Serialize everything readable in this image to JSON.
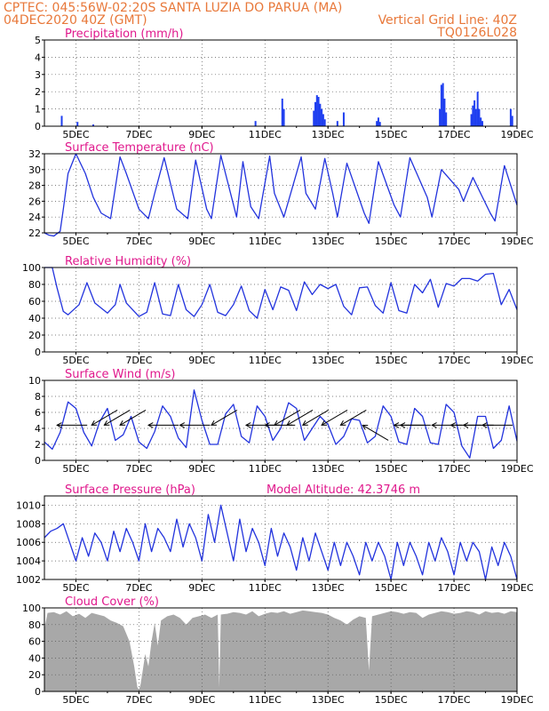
{
  "header": {
    "line1_left": "CPTEC:  045:56W-02:20S  SANTA LUZIA DO PARUA (MA)",
    "line2_left": "04DEC2020 40Z (GMT)",
    "line2_right": "Vertical Grid Line: 40Z",
    "line3_right": "TQ0126L028"
  },
  "colors": {
    "header": "#e8783a",
    "title": "#e0188c",
    "line": "#2233dd",
    "bar": "#1f3ff0",
    "cloud": "#a8a8a8",
    "arrow": "#000000"
  },
  "x_ticks": [
    "5DEC",
    "7DEC",
    "9DEC",
    "11DEC",
    "13DEC",
    "15DEC",
    "17DEC",
    "19DEC"
  ],
  "chart_data": [
    {
      "id": "precip",
      "type": "bar",
      "title": "Precipitation (mm/h)",
      "x_start": 4.0,
      "x_end": 19.0,
      "ylim": [
        0,
        5
      ],
      "yticks": [
        "0",
        "1",
        "2",
        "3",
        "4",
        "5"
      ],
      "grid": true,
      "x": [
        4.55,
        5.05,
        5.55,
        10.7,
        11.55,
        11.6,
        12.55,
        12.6,
        12.65,
        12.7,
        12.75,
        12.8,
        12.85,
        12.9,
        13.3,
        13.5,
        14.55,
        14.6,
        14.65,
        16.55,
        16.6,
        16.65,
        16.7,
        16.75,
        17.55,
        17.6,
        17.65,
        17.7,
        17.75,
        17.8,
        17.85,
        17.9,
        18.8,
        18.85
      ],
      "values": [
        0.6,
        0.25,
        0.1,
        0.3,
        1.6,
        1.0,
        0.9,
        1.4,
        1.8,
        1.7,
        1.3,
        1.0,
        0.7,
        0.4,
        0.3,
        0.8,
        0.3,
        0.5,
        0.25,
        1.0,
        2.4,
        2.5,
        1.6,
        0.8,
        0.7,
        1.2,
        1.5,
        1.0,
        2.0,
        1.0,
        0.5,
        0.3,
        1.0,
        0.6
      ]
    },
    {
      "id": "temp",
      "type": "line",
      "title": "Surface Temperature (nC)",
      "ylim": [
        22,
        32
      ],
      "yticks": [
        "22",
        "24",
        "26",
        "28",
        "30",
        "32"
      ],
      "grid": true,
      "x": [
        4.0,
        4.15,
        4.3,
        4.5,
        4.6,
        4.75,
        5.0,
        5.3,
        5.55,
        5.8,
        6.1,
        6.4,
        6.6,
        7.0,
        7.3,
        7.5,
        7.8,
        8.2,
        8.55,
        8.8,
        9.15,
        9.3,
        9.6,
        10.1,
        10.3,
        10.55,
        10.8,
        11.15,
        11.3,
        11.6,
        12.15,
        12.3,
        12.6,
        12.9,
        13.15,
        13.3,
        13.6,
        14.15,
        14.3,
        14.6,
        15.1,
        15.3,
        15.6,
        16.15,
        16.3,
        16.6,
        17.15,
        17.3,
        17.6,
        18.15,
        18.3,
        18.6,
        19.0
      ],
      "values": [
        22.0,
        21.7,
        21.6,
        22.2,
        25.0,
        29.5,
        32.0,
        29.5,
        26.5,
        24.5,
        23.8,
        31.6,
        29.5,
        25.0,
        23.8,
        27.0,
        31.5,
        25.0,
        23.8,
        31.2,
        25.0,
        23.8,
        31.8,
        24.0,
        31.0,
        25.3,
        23.8,
        31.7,
        27.0,
        24.0,
        31.6,
        27.0,
        25.0,
        31.4,
        27.0,
        24.0,
        30.8,
        24.5,
        23.2,
        31.0,
        25.5,
        24.0,
        31.5,
        26.5,
        24.0,
        30.0,
        27.5,
        26.0,
        29.0,
        24.5,
        23.5,
        30.5,
        25.5
      ]
    },
    {
      "id": "rh",
      "type": "line",
      "title": "Relative Humidity (%)",
      "ylim": [
        0,
        100
      ],
      "yticks": [
        "0",
        "20",
        "40",
        "60",
        "80",
        "100"
      ],
      "grid": true,
      "x": [
        4.0,
        4.25,
        4.4,
        4.6,
        4.75,
        5.1,
        5.35,
        5.6,
        6.0,
        6.25,
        6.4,
        6.6,
        7.0,
        7.25,
        7.5,
        7.75,
        8.0,
        8.25,
        8.5,
        8.75,
        9.0,
        9.25,
        9.5,
        9.75,
        10.0,
        10.25,
        10.5,
        10.75,
        11.0,
        11.25,
        11.5,
        11.75,
        12.0,
        12.25,
        12.5,
        12.75,
        13.0,
        13.25,
        13.5,
        13.75,
        14.0,
        14.25,
        14.5,
        14.75,
        15.0,
        15.25,
        15.5,
        15.75,
        16.0,
        16.25,
        16.5,
        16.75,
        17.0,
        17.25,
        17.5,
        17.75,
        18.0,
        18.25,
        18.5,
        18.75,
        19.0
      ],
      "values": [
        100,
        100,
        76,
        48,
        44,
        56,
        82,
        58,
        46,
        56,
        80,
        58,
        42,
        47,
        82,
        45,
        43,
        80,
        50,
        42,
        56,
        80,
        47,
        43,
        56,
        78,
        49,
        40,
        74,
        50,
        77,
        73,
        49,
        83,
        68,
        80,
        75,
        80,
        54,
        44,
        76,
        77,
        55,
        46,
        82,
        49,
        46,
        80,
        70,
        86,
        53,
        81,
        78,
        87,
        87,
        84,
        92,
        93,
        56,
        74,
        50
      ]
    },
    {
      "id": "wind",
      "type": "line",
      "title": "Surface Wind (m/s)",
      "ylim": [
        0,
        10
      ],
      "yticks": [
        "0",
        "2",
        "4",
        "6",
        "8",
        "10"
      ],
      "grid": true,
      "x": [
        4.0,
        4.25,
        4.5,
        4.75,
        5.0,
        5.25,
        5.5,
        5.75,
        6.0,
        6.25,
        6.5,
        6.75,
        7.0,
        7.25,
        7.5,
        7.75,
        8.0,
        8.25,
        8.5,
        8.75,
        9.0,
        9.25,
        9.5,
        9.75,
        10.0,
        10.25,
        10.5,
        10.75,
        11.0,
        11.25,
        11.5,
        11.75,
        12.0,
        12.25,
        12.5,
        12.75,
        13.0,
        13.25,
        13.5,
        13.75,
        14.0,
        14.25,
        14.5,
        14.75,
        15.0,
        15.25,
        15.5,
        15.75,
        16.0,
        16.25,
        16.5,
        16.75,
        17.0,
        17.25,
        17.5,
        17.75,
        18.0,
        18.25,
        18.5,
        18.75,
        19.0
      ],
      "values": [
        2.3,
        1.4,
        3.5,
        7.3,
        6.5,
        3.5,
        1.8,
        4.8,
        6.5,
        2.5,
        3.2,
        5.5,
        2.3,
        1.5,
        3.6,
        6.8,
        5.5,
        2.8,
        1.6,
        8.8,
        5.0,
        2.0,
        2.0,
        5.8,
        7.0,
        3.0,
        2.2,
        6.8,
        5.5,
        2.5,
        4.0,
        7.2,
        6.5,
        2.5,
        4.0,
        5.5,
        4.5,
        2.0,
        3.0,
        5.2,
        5.0,
        2.2,
        3.0,
        6.8,
        5.5,
        2.3,
        2.0,
        6.5,
        5.5,
        2.2,
        2.0,
        7.0,
        6.0,
        1.8,
        0.3,
        5.5,
        5.5,
        1.5,
        2.5,
        6.8,
        2.4
      ],
      "arrows_x": [
        4.4,
        5.5,
        5.9,
        6.4,
        7.3,
        8.3,
        9.3,
        10.4,
        11.0,
        11.3,
        11.7,
        12.2,
        12.8,
        13.4,
        14.1,
        15.1,
        15.3,
        16.3,
        16.9,
        17.3,
        17.9
      ],
      "arrows_dir": [
        "W",
        "SW",
        "SW",
        "SW",
        "W",
        "W",
        "SW",
        "W",
        "W",
        "SW",
        "SW",
        "SW",
        "SW",
        "SW",
        "NW",
        "W",
        "W",
        "W",
        "W",
        "W",
        "W"
      ]
    },
    {
      "id": "pressure",
      "type": "line",
      "title": "Surface Pressure (hPa)",
      "annotation": "Model Altitude: 42.3746 m",
      "ylim": [
        1002,
        1011
      ],
      "yticks": [
        "1002",
        "1004",
        "1006",
        "1008",
        "1010"
      ],
      "grid": true,
      "x": [
        4.0,
        4.2,
        4.4,
        4.6,
        4.8,
        5.0,
        5.2,
        5.4,
        5.6,
        5.8,
        6.0,
        6.2,
        6.4,
        6.6,
        6.8,
        7.0,
        7.2,
        7.4,
        7.6,
        7.8,
        8.0,
        8.2,
        8.4,
        8.6,
        8.8,
        9.0,
        9.2,
        9.4,
        9.6,
        9.8,
        10.0,
        10.2,
        10.4,
        10.6,
        10.8,
        11.0,
        11.2,
        11.4,
        11.6,
        11.8,
        12.0,
        12.2,
        12.4,
        12.6,
        12.8,
        13.0,
        13.2,
        13.4,
        13.6,
        13.8,
        14.0,
        14.2,
        14.4,
        14.6,
        14.8,
        15.0,
        15.2,
        15.4,
        15.6,
        15.8,
        16.0,
        16.2,
        16.4,
        16.6,
        16.8,
        17.0,
        17.2,
        17.4,
        17.6,
        17.8,
        18.0,
        18.2,
        18.4,
        18.6,
        18.8,
        19.0
      ],
      "values": [
        1006.5,
        1007.2,
        1007.5,
        1008.0,
        1006.0,
        1004.0,
        1006.5,
        1004.5,
        1007.0,
        1006.0,
        1004.0,
        1007.2,
        1005.0,
        1007.5,
        1006.0,
        1004.0,
        1008.0,
        1005.0,
        1007.5,
        1006.5,
        1005.0,
        1008.5,
        1005.5,
        1008.0,
        1006.5,
        1004.0,
        1009.0,
        1006.0,
        1010.0,
        1007.0,
        1004.0,
        1008.5,
        1005.0,
        1007.5,
        1006.0,
        1003.5,
        1007.5,
        1004.5,
        1007.0,
        1005.5,
        1003.0,
        1006.5,
        1004.0,
        1007.0,
        1005.0,
        1003.0,
        1006.0,
        1003.5,
        1006.0,
        1004.5,
        1002.5,
        1006.0,
        1004.0,
        1006.0,
        1004.5,
        1002.0,
        1006.0,
        1003.5,
        1006.0,
        1004.5,
        1002.5,
        1006.0,
        1004.0,
        1006.5,
        1005.0,
        1002.5,
        1006.0,
        1004.0,
        1006.0,
        1005.0,
        1002.0,
        1005.5,
        1003.5,
        1006.0,
        1004.5,
        1002.0
      ]
    },
    {
      "id": "cloud",
      "type": "area",
      "title": "Cloud Cover (%)",
      "ylim": [
        0,
        100
      ],
      "yticks": [
        "0",
        "20",
        "40",
        "60",
        "80",
        "100"
      ],
      "grid": true,
      "x": [
        4.0,
        4.1,
        4.3,
        4.5,
        4.7,
        4.9,
        5.1,
        5.3,
        5.5,
        5.7,
        5.9,
        6.1,
        6.3,
        6.5,
        6.7,
        6.85,
        6.95,
        7.0,
        7.05,
        7.1,
        7.2,
        7.3,
        7.4,
        7.5,
        7.6,
        7.7,
        7.9,
        8.1,
        8.3,
        8.5,
        8.7,
        8.9,
        9.1,
        9.3,
        9.5,
        9.55,
        9.6,
        9.8,
        10.0,
        10.2,
        10.4,
        10.6,
        10.8,
        11.0,
        11.2,
        11.4,
        11.6,
        11.8,
        12.0,
        12.2,
        12.4,
        12.6,
        12.8,
        13.0,
        13.2,
        13.4,
        13.6,
        13.8,
        14.0,
        14.2,
        14.3,
        14.4,
        14.6,
        14.8,
        15.0,
        15.2,
        15.4,
        15.6,
        15.8,
        16.0,
        16.2,
        16.4,
        16.6,
        16.8,
        17.0,
        17.2,
        17.4,
        17.6,
        17.8,
        18.0,
        18.2,
        18.4,
        18.6,
        18.8,
        19.0
      ],
      "values": [
        75,
        94,
        95,
        92,
        96,
        90,
        93,
        88,
        94,
        92,
        90,
        85,
        82,
        78,
        60,
        30,
        5,
        2,
        8,
        20,
        45,
        30,
        60,
        82,
        55,
        85,
        90,
        92,
        88,
        80,
        88,
        90,
        92,
        88,
        92,
        5,
        92,
        93,
        95,
        94,
        92,
        96,
        90,
        93,
        95,
        94,
        96,
        93,
        95,
        97,
        96,
        95,
        94,
        92,
        88,
        85,
        80,
        86,
        90,
        88,
        25,
        90,
        92,
        94,
        96,
        95,
        93,
        95,
        94,
        88,
        92,
        94,
        96,
        95,
        93,
        94,
        96,
        95,
        92,
        96,
        94,
        95,
        93,
        96,
        95
      ]
    }
  ]
}
